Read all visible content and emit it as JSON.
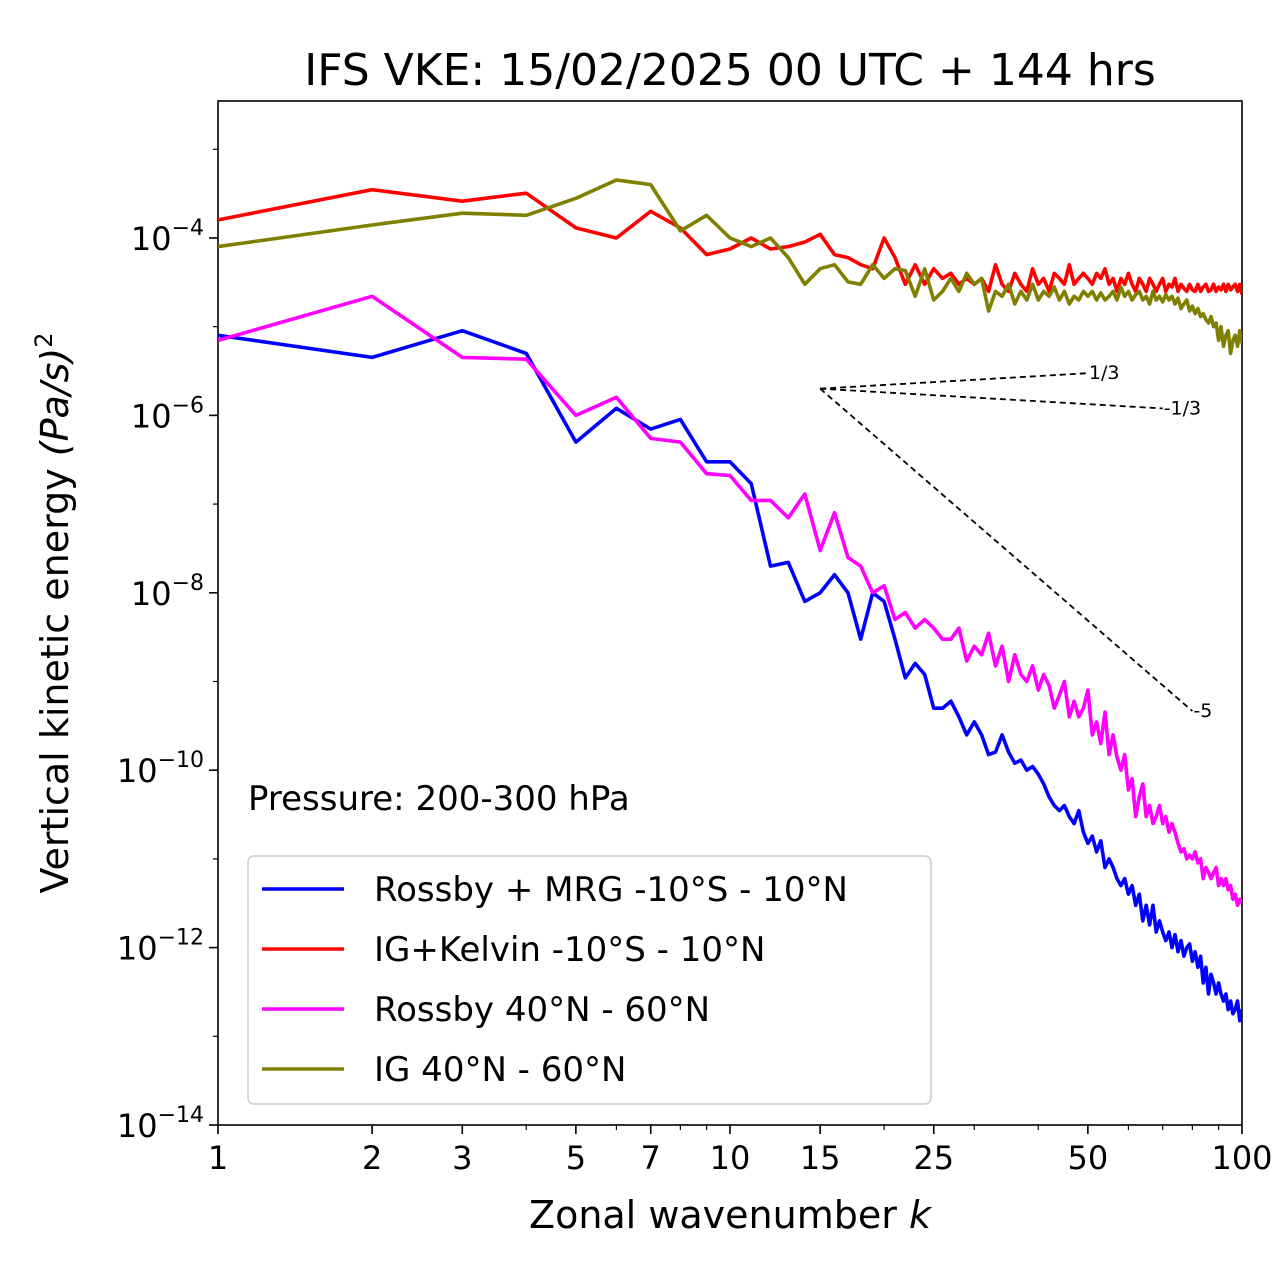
{
  "chart_data": {
    "type": "line",
    "title": "IFS VKE: 15/02/2025 00 UTC + 144 hrs",
    "xlabel": "Zonal wavenumber",
    "xlabel_italic": "k",
    "ylabel": "Vertical kinetic energy",
    "ylabel_unit": "(Pa/s)",
    "ylabel_power": "2",
    "x_scale": "log",
    "y_scale": "log",
    "xlim": [
      1,
      100
    ],
    "ylim": [
      1e-14,
      0.0035
    ],
    "grid": false,
    "legend_position": "lower-left",
    "annotation": "Pressure: 200-300 hPa",
    "x_ticks": [
      {
        "value": 1,
        "label": "1"
      },
      {
        "value": 2,
        "label": "2"
      },
      {
        "value": 3,
        "label": "3"
      },
      {
        "value": 5,
        "label": "5"
      },
      {
        "value": 7,
        "label": "7"
      },
      {
        "value": 10,
        "label": "10"
      },
      {
        "value": 15,
        "label": "15"
      },
      {
        "value": 25,
        "label": "25"
      },
      {
        "value": 50,
        "label": "50"
      },
      {
        "value": 100,
        "label": "100"
      }
    ],
    "y_ticks": [
      {
        "value": 0.0001,
        "base": "10",
        "exp": "−4"
      },
      {
        "value": 1e-06,
        "base": "10",
        "exp": "−6"
      },
      {
        "value": 1e-08,
        "base": "10",
        "exp": "−8"
      },
      {
        "value": 1e-10,
        "base": "10",
        "exp": "−10"
      },
      {
        "value": 1e-12,
        "base": "10",
        "exp": "−12"
      },
      {
        "value": 1e-14,
        "base": "10",
        "exp": "−14"
      }
    ],
    "reference_slopes": [
      {
        "label": "1/3",
        "slope": 0.3333,
        "x0": 15,
        "y0": 2e-06,
        "x1": 50
      },
      {
        "label": "-1/3",
        "slope": -0.3333,
        "x0": 15,
        "y0": 2e-06,
        "x1": 70
      },
      {
        "label": "-5",
        "slope": -5,
        "x0": 15,
        "y0": 2e-06,
        "x1": 80
      }
    ],
    "series": [
      {
        "name": "Rossby + MRG -10°S - 10°N",
        "color": "#0000ff",
        "x": [
          1,
          2,
          3,
          4,
          5,
          6,
          7,
          8,
          9,
          10,
          11,
          12,
          13,
          14,
          15,
          16,
          17,
          18,
          19,
          20,
          21,
          22,
          23,
          24,
          25,
          26,
          27,
          28,
          29,
          30,
          31,
          32,
          33,
          34,
          35,
          36,
          37,
          38,
          39,
          40,
          41,
          42,
          43,
          44,
          45,
          46,
          47,
          48,
          49,
          50,
          51,
          52,
          53,
          54,
          55,
          56,
          57,
          58,
          59,
          60,
          61,
          62,
          63,
          64,
          65,
          66,
          67,
          68,
          69,
          70,
          71,
          72,
          73,
          74,
          75,
          76,
          77,
          78,
          79,
          80,
          81,
          82,
          83,
          84,
          85,
          86,
          87,
          88,
          89,
          90,
          91,
          92,
          93,
          94,
          95,
          96,
          97,
          98,
          99,
          100
        ],
        "y": [
          8e-06,
          4.5e-06,
          9e-06,
          5e-06,
          5e-07,
          1.2e-06,
          7e-07,
          9e-07,
          3e-07,
          3e-07,
          1.7e-07,
          2e-08,
          2.2e-08,
          8e-09,
          1e-08,
          1.6e-08,
          1e-08,
          3e-09,
          1e-08,
          8e-09,
          3e-09,
          1.1e-09,
          1.6e-09,
          1.2e-09,
          5e-10,
          5e-10,
          6e-10,
          4e-10,
          2.5e-10,
          3.5e-10,
          2.5e-10,
          1.5e-10,
          1.6e-10,
          2.5e-10,
          1.6e-10,
          1.2e-10,
          1.3e-10,
          1e-10,
          1.1e-10,
          9e-11,
          7e-11,
          5e-11,
          4e-11,
          3.5e-11,
          4e-11,
          3e-11,
          2.5e-11,
          3.5e-11,
          2e-11,
          1.5e-11,
          1.8e-11,
          1.2e-11,
          1.6e-11,
          8e-12,
          1e-11,
          8e-12,
          6e-12,
          5e-12,
          6e-12,
          4e-12,
          5e-12,
          3e-12,
          4e-12,
          2e-12,
          3e-12,
          1.8e-12,
          3e-12,
          1.5e-12,
          2e-12,
          1.5e-12,
          1.2e-12,
          1.5e-12,
          1e-12,
          1.4e-12,
          9e-13,
          1.2e-12,
          8e-13,
          1e-12,
          1.1e-12,
          7e-13,
          9e-13,
          6e-13,
          8e-13,
          4e-13,
          6e-13,
          3e-13,
          5e-13,
          4e-13,
          3e-13,
          4e-13,
          3e-13,
          2.5e-13,
          3e-13,
          2e-13,
          2.5e-13,
          1.8e-13,
          2e-13,
          2.5e-13,
          1.5e-13,
          2e-13
        ]
      },
      {
        "name": "IG+Kelvin -10°S - 10°N",
        "color": "#ff0000",
        "x": [
          1,
          2,
          3,
          4,
          5,
          6,
          7,
          8,
          9,
          10,
          11,
          12,
          13,
          14,
          15,
          16,
          17,
          18,
          19,
          20,
          21,
          22,
          23,
          24,
          25,
          26,
          27,
          28,
          29,
          30,
          31,
          32,
          33,
          34,
          35,
          36,
          37,
          38,
          39,
          40,
          41,
          42,
          43,
          44,
          45,
          46,
          47,
          48,
          49,
          50,
          51,
          52,
          53,
          54,
          55,
          56,
          57,
          58,
          59,
          60,
          61,
          62,
          63,
          64,
          65,
          66,
          67,
          68,
          69,
          70,
          71,
          72,
          73,
          74,
          75,
          76,
          77,
          78,
          79,
          80,
          81,
          82,
          83,
          84,
          85,
          86,
          87,
          88,
          89,
          90,
          91,
          92,
          93,
          94,
          95,
          96,
          97,
          98,
          99,
          100
        ],
        "y": [
          0.00016,
          0.00035,
          0.00026,
          0.00032,
          0.00013,
          0.0001,
          0.0002,
          0.00013,
          6.5e-05,
          7.5e-05,
          0.0001,
          7.5e-05,
          8e-05,
          9e-05,
          0.00011,
          6.5e-05,
          6e-05,
          5e-05,
          4.5e-05,
          0.0001,
          6e-05,
          3e-05,
          5e-05,
          3e-05,
          4.5e-05,
          3.5e-05,
          4e-05,
          3e-05,
          3.5e-05,
          3e-05,
          3.5e-05,
          2.5e-05,
          5e-05,
          3e-05,
          2.5e-05,
          4e-05,
          3e-05,
          2.5e-05,
          4.5e-05,
          3e-05,
          3.5e-05,
          2.5e-05,
          4e-05,
          3.5e-05,
          3e-05,
          5e-05,
          3e-05,
          3.5e-05,
          4e-05,
          3.5e-05,
          3e-05,
          4e-05,
          3.5e-05,
          4.5e-05,
          3e-05,
          3.5e-05,
          2.5e-05,
          3.5e-05,
          3e-05,
          4e-05,
          3e-05,
          2.5e-05,
          3.5e-05,
          3e-05,
          2.5e-05,
          3.5e-05,
          3e-05,
          2.5e-05,
          3e-05,
          3.5e-05,
          2.5e-05,
          3e-05,
          2.8e-05,
          3.5e-05,
          2.5e-05,
          3e-05,
          2.7e-05,
          2.5e-05,
          3e-05,
          2.6e-05,
          2.5e-05,
          3e-05,
          2.5e-05,
          2.8e-05,
          3e-05,
          2.5e-05,
          2.6e-05,
          3e-05,
          2.5e-05,
          2.8e-05,
          2.6e-05,
          3e-05,
          2.5e-05,
          3e-05,
          2.6e-05,
          2.8e-05,
          3e-05,
          2.5e-05,
          3e-05,
          2.3e-05
        ]
      },
      {
        "name": "Rossby 40°N - 60°N",
        "color": "#ff00ff",
        "x": [
          1,
          2,
          3,
          4,
          5,
          6,
          7,
          8,
          9,
          10,
          11,
          12,
          13,
          14,
          15,
          16,
          17,
          18,
          19,
          20,
          21,
          22,
          23,
          24,
          25,
          26,
          27,
          28,
          29,
          30,
          31,
          32,
          33,
          34,
          35,
          36,
          37,
          38,
          39,
          40,
          41,
          42,
          43,
          44,
          45,
          46,
          47,
          48,
          49,
          50,
          51,
          52,
          53,
          54,
          55,
          56,
          57,
          58,
          59,
          60,
          61,
          62,
          63,
          64,
          65,
          66,
          67,
          68,
          69,
          70,
          71,
          72,
          73,
          74,
          75,
          76,
          77,
          78,
          79,
          80,
          81,
          82,
          83,
          84,
          85,
          86,
          87,
          88,
          89,
          90,
          91,
          92,
          93,
          94,
          95,
          96,
          97,
          98,
          99,
          100
        ],
        "y": [
          7e-06,
          2.2e-05,
          4.5e-06,
          4.3e-06,
          1e-06,
          1.6e-06,
          5.5e-07,
          5e-07,
          2.2e-07,
          2.1e-07,
          1.1e-07,
          1.1e-07,
          7e-08,
          1.3e-07,
          3e-08,
          8e-08,
          2.5e-08,
          2e-08,
          1e-08,
          1.2e-08,
          5e-09,
          6e-09,
          4e-09,
          5e-09,
          4e-09,
          3e-09,
          3e-09,
          4e-09,
          1.7e-09,
          2.5e-09,
          2e-09,
          3.5e-09,
          1.5e-09,
          2.5e-09,
          1e-09,
          2e-09,
          1.2e-09,
          1e-09,
          1.5e-09,
          8e-10,
          1.2e-09,
          9e-10,
          5e-10,
          7e-10,
          1e-09,
          4e-10,
          6e-10,
          4e-10,
          5e-10,
          8e-10,
          2.5e-10,
          3.5e-10,
          2e-10,
          4.5e-10,
          1.5e-10,
          2.5e-10,
          1.4e-10,
          1e-10,
          1.5e-10,
          6e-11,
          8e-11,
          3e-11,
          5e-11,
          7e-11,
          3e-11,
          4e-11,
          2.5e-11,
          3e-11,
          4e-11,
          2.5e-11,
          3e-11,
          2e-11,
          2.5e-11,
          2e-11,
          1.5e-11,
          1.2e-11,
          1.3e-11,
          1e-11,
          1.1e-11,
          1e-11,
          1.2e-11,
          9e-12,
          1e-11,
          6e-12,
          8e-12,
          7e-12,
          6e-12,
          7e-12,
          8e-12,
          5e-12,
          6e-12,
          5e-12,
          6e-12,
          4.5e-12,
          5e-12,
          3.5e-12,
          4e-12,
          3e-12,
          3.5e-12,
          3.2e-12
        ]
      },
      {
        "name": "IG 40°N - 60°N",
        "color": "#808000",
        "x": [
          1,
          2,
          3,
          4,
          5,
          6,
          7,
          8,
          9,
          10,
          11,
          12,
          13,
          14,
          15,
          16,
          17,
          18,
          19,
          20,
          21,
          22,
          23,
          24,
          25,
          26,
          27,
          28,
          29,
          30,
          31,
          32,
          33,
          34,
          35,
          36,
          37,
          38,
          39,
          40,
          41,
          42,
          43,
          44,
          45,
          46,
          47,
          48,
          49,
          50,
          51,
          52,
          53,
          54,
          55,
          56,
          57,
          58,
          59,
          60,
          61,
          62,
          63,
          64,
          65,
          66,
          67,
          68,
          69,
          70,
          71,
          72,
          73,
          74,
          75,
          76,
          77,
          78,
          79,
          80,
          81,
          82,
          83,
          84,
          85,
          86,
          87,
          88,
          89,
          90,
          91,
          92,
          93,
          94,
          95,
          96,
          97,
          98,
          99,
          100
        ],
        "y": [
          8e-05,
          0.00014,
          0.00019,
          0.00018,
          0.00028,
          0.00045,
          0.0004,
          0.00012,
          0.00018,
          0.0001,
          8e-05,
          0.0001,
          6e-05,
          3e-05,
          4.5e-05,
          5e-05,
          3.2e-05,
          3e-05,
          5e-05,
          3.5e-05,
          4.5e-05,
          4.3e-05,
          2.2e-05,
          4.5e-05,
          2e-05,
          2.5e-05,
          3.5e-05,
          2.5e-05,
          4e-05,
          3e-05,
          3.5e-05,
          1.5e-05,
          2.5e-05,
          2.2e-05,
          3e-05,
          1.8e-05,
          2.5e-05,
          2e-05,
          3e-05,
          2e-05,
          2.5e-05,
          2.2e-05,
          2.8e-05,
          2e-05,
          2.5e-05,
          1.8e-05,
          2.2e-05,
          2e-05,
          2.5e-05,
          2.2e-05,
          2.5e-05,
          2e-05,
          2.4e-05,
          2e-05,
          2.2e-05,
          2.5e-05,
          2e-05,
          2.8e-05,
          2.2e-05,
          2.5e-05,
          2e-05,
          2.3e-05,
          2.5e-05,
          2e-05,
          2.2e-05,
          1.8e-05,
          2.5e-05,
          2e-05,
          2.2e-05,
          1.9e-05,
          2.3e-05,
          2e-05,
          2.2e-05,
          1.8e-05,
          2.1e-05,
          1.6e-05,
          1.8e-05,
          2e-05,
          1.5e-05,
          1.7e-05,
          1.4e-05,
          1.6e-05,
          1.3e-05,
          1.4e-05,
          1.2e-05,
          1.1e-05,
          1.3e-05,
          1e-05,
          1.1e-05,
          7e-06,
          1e-05,
          6e-06,
          8e-06,
          9e-06,
          5e-06,
          7e-06,
          8e-06,
          6e-06,
          9e-06,
          6.5e-06
        ]
      }
    ]
  }
}
